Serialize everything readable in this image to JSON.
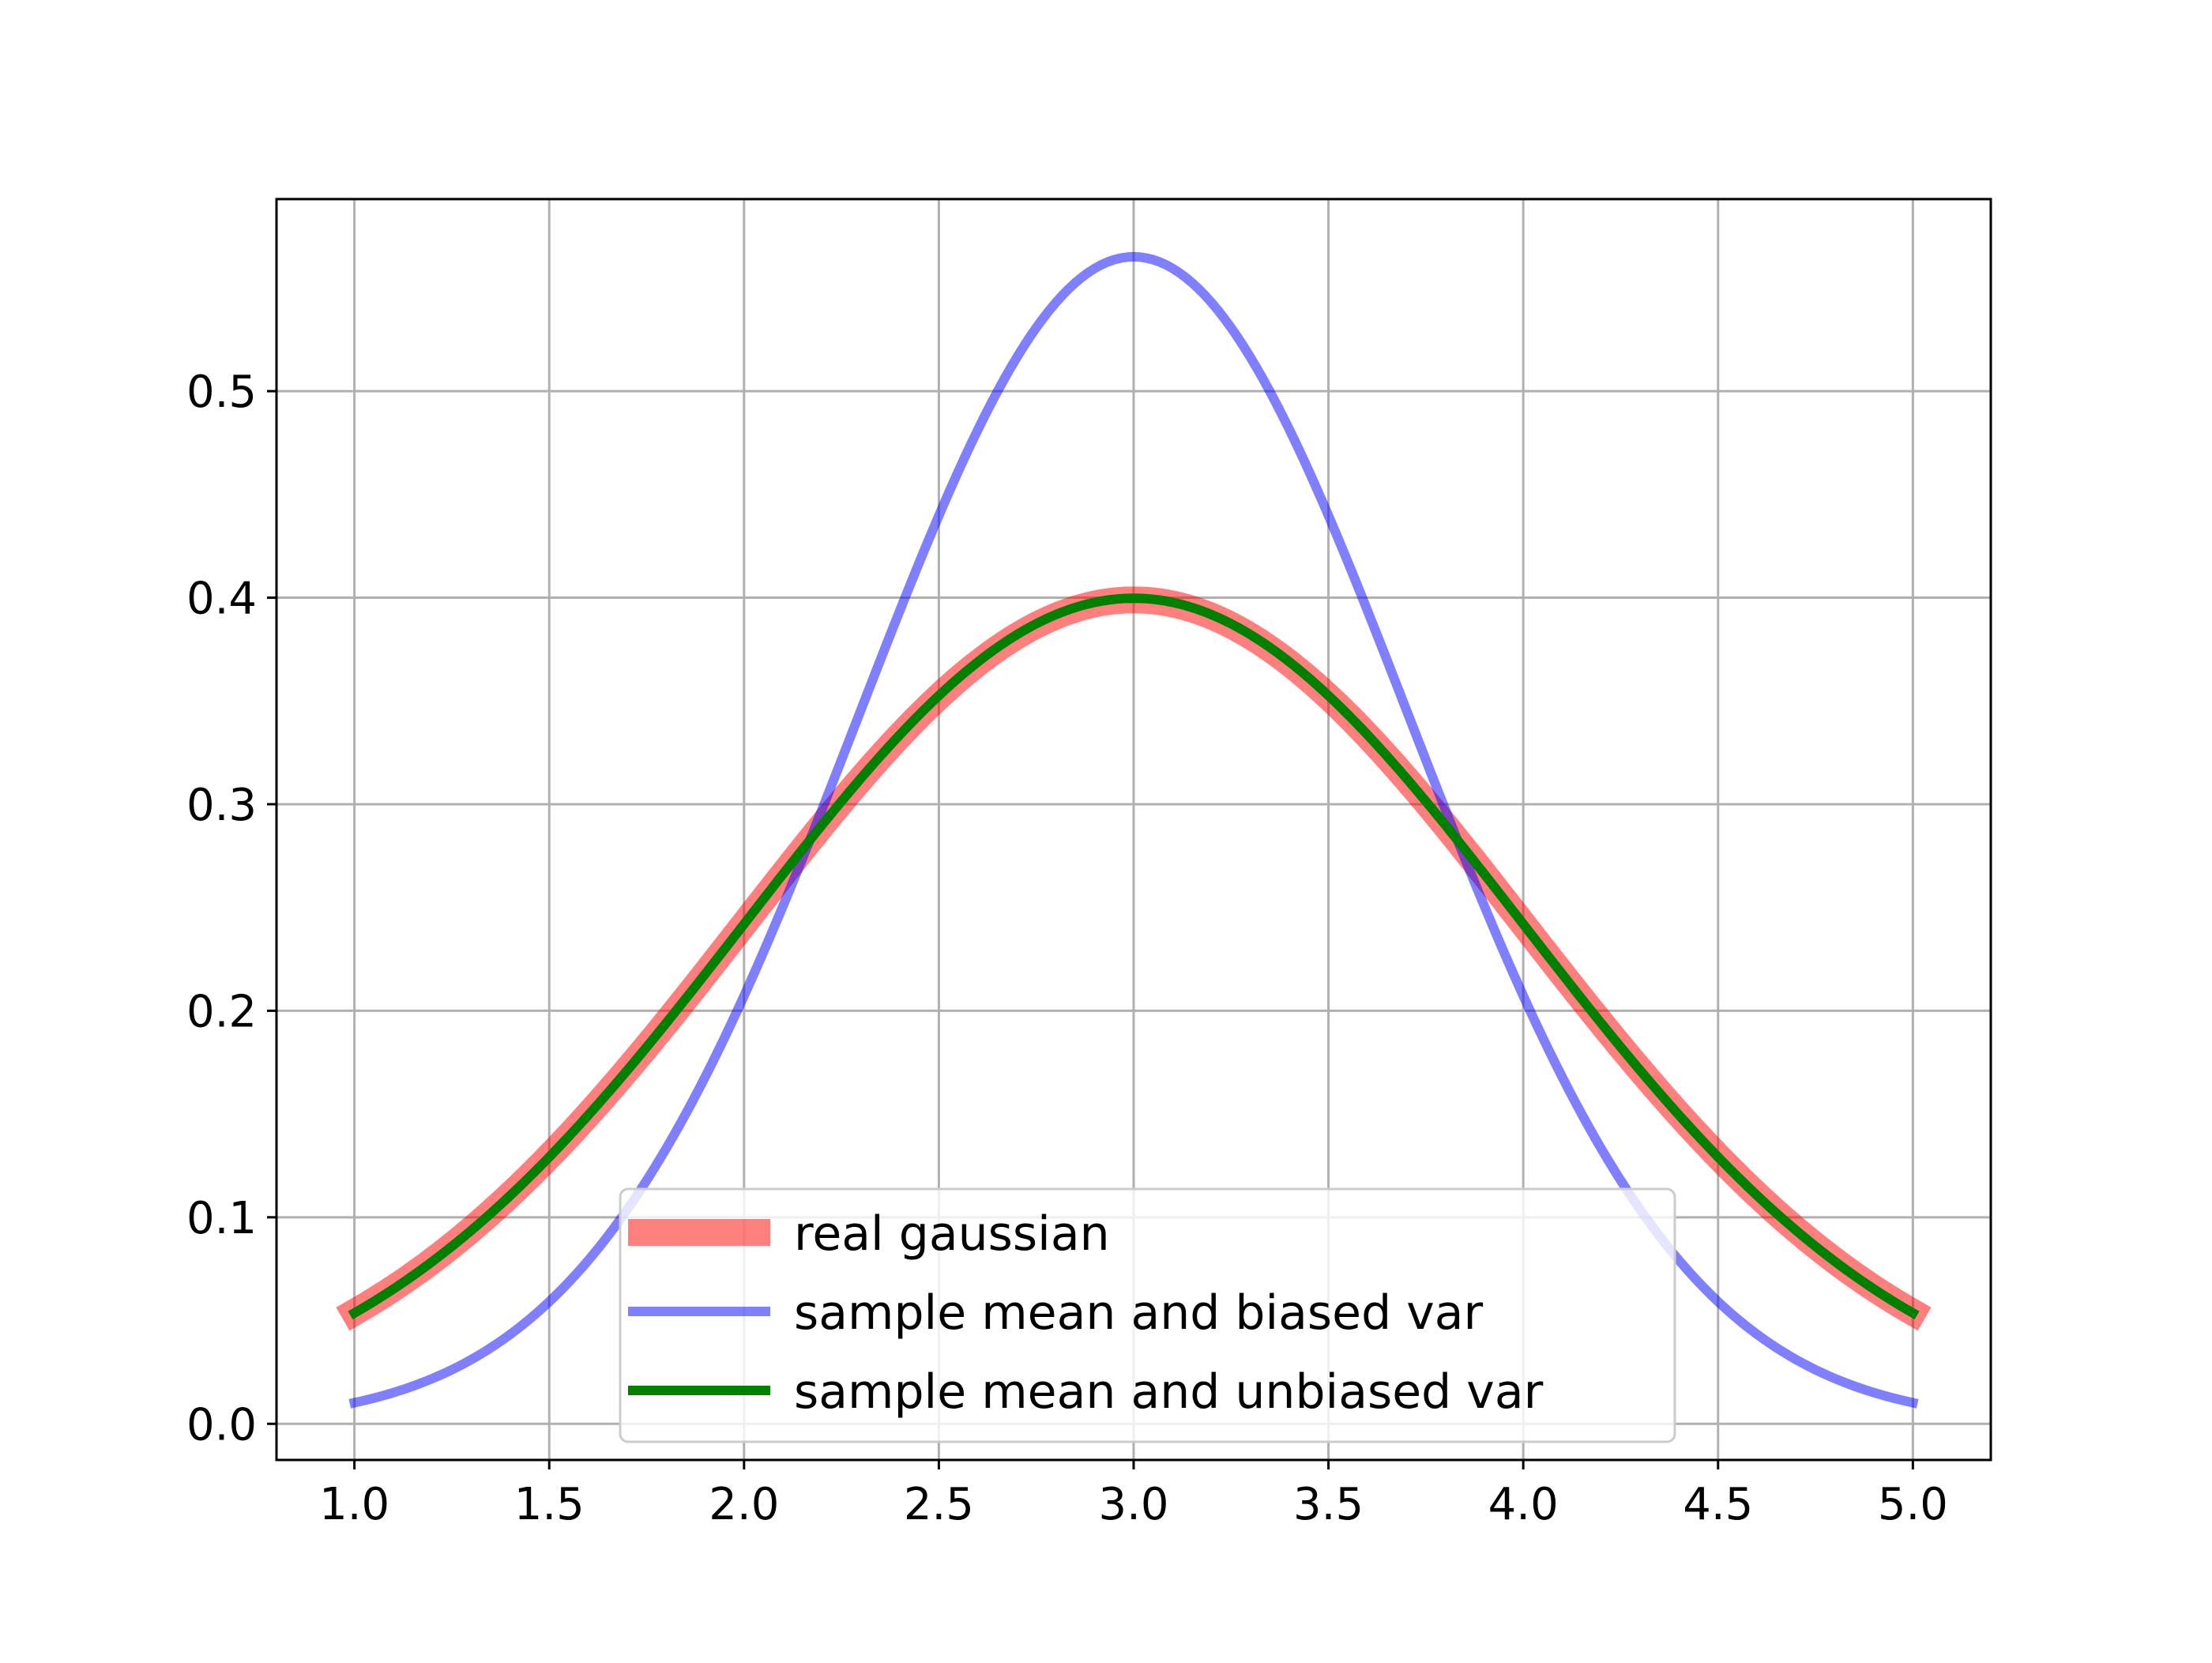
{
  "chart_data": {
    "type": "line",
    "title": "",
    "xlabel": "",
    "ylabel": "",
    "xlim": [
      0.8,
      5.2
    ],
    "ylim": [
      -0.0175,
      0.593
    ],
    "x_ticks": [
      1.0,
      1.5,
      2.0,
      2.5,
      3.0,
      3.5,
      4.0,
      4.5,
      5.0
    ],
    "x_tick_labels": [
      "1.0",
      "1.5",
      "2.0",
      "2.5",
      "3.0",
      "3.5",
      "4.0",
      "4.5",
      "5.0"
    ],
    "y_ticks": [
      0.0,
      0.1,
      0.2,
      0.3,
      0.4,
      0.5
    ],
    "y_tick_labels": [
      "0.0",
      "0.1",
      "0.2",
      "0.3",
      "0.4",
      "0.5"
    ],
    "grid": true,
    "legend_position": "lower center",
    "x_range": [
      1.0,
      5.0
    ],
    "series": [
      {
        "name": "real gaussian",
        "color": "#ff0000",
        "opacity": 0.5,
        "line_style": "thick",
        "mean": 3.0,
        "std": 1.0
      },
      {
        "name": "sample mean and biased var",
        "color": "#0000ff",
        "opacity": 0.5,
        "line_style": "medium",
        "mean": 3.0,
        "std": 0.706
      },
      {
        "name": "sample mean and unbiased var",
        "color": "#008000",
        "opacity": 1.0,
        "line_style": "medium",
        "mean": 3.0,
        "std": 0.998
      }
    ]
  }
}
